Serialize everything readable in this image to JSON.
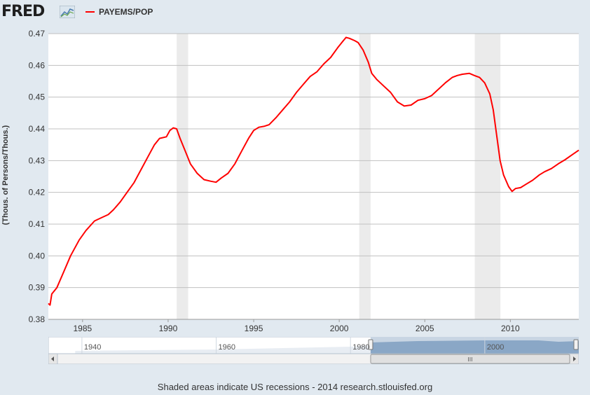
{
  "header": {
    "logo_text": "FRED",
    "logo_icon": "chart-line-icon"
  },
  "chart_data": {
    "type": "line",
    "series": [
      {
        "name": "PAYEMS/POP",
        "color": "#ff0000",
        "points": [
          [
            1983.0,
            0.385
          ],
          [
            1983.1,
            0.3845
          ],
          [
            1983.2,
            0.388
          ],
          [
            1983.5,
            0.39
          ],
          [
            1983.9,
            0.395
          ],
          [
            1984.3,
            0.4
          ],
          [
            1984.8,
            0.405
          ],
          [
            1985.2,
            0.408
          ],
          [
            1985.7,
            0.411
          ],
          [
            1986.1,
            0.412
          ],
          [
            1986.5,
            0.413
          ],
          [
            1986.8,
            0.4145
          ],
          [
            1987.2,
            0.417
          ],
          [
            1987.6,
            0.42
          ],
          [
            1988.0,
            0.423
          ],
          [
            1988.4,
            0.427
          ],
          [
            1988.8,
            0.431
          ],
          [
            1989.2,
            0.435
          ],
          [
            1989.5,
            0.437
          ],
          [
            1989.9,
            0.4375
          ],
          [
            1990.1,
            0.4395
          ],
          [
            1990.3,
            0.4403
          ],
          [
            1990.5,
            0.44
          ],
          [
            1990.7,
            0.437
          ],
          [
            1991.0,
            0.433
          ],
          [
            1991.3,
            0.429
          ],
          [
            1991.7,
            0.426
          ],
          [
            1992.1,
            0.424
          ],
          [
            1992.5,
            0.4235
          ],
          [
            1992.8,
            0.4232
          ],
          [
            1993.1,
            0.4245
          ],
          [
            1993.5,
            0.426
          ],
          [
            1993.9,
            0.429
          ],
          [
            1994.3,
            0.433
          ],
          [
            1994.7,
            0.437
          ],
          [
            1995.0,
            0.4395
          ],
          [
            1995.3,
            0.4405
          ],
          [
            1995.6,
            0.4408
          ],
          [
            1995.9,
            0.4413
          ],
          [
            1996.3,
            0.4435
          ],
          [
            1996.7,
            0.446
          ],
          [
            1997.1,
            0.4485
          ],
          [
            1997.5,
            0.4515
          ],
          [
            1997.9,
            0.454
          ],
          [
            1998.3,
            0.4565
          ],
          [
            1998.7,
            0.458
          ],
          [
            1999.1,
            0.4605
          ],
          [
            1999.5,
            0.4625
          ],
          [
            1999.9,
            0.4655
          ],
          [
            2000.2,
            0.4675
          ],
          [
            2000.4,
            0.4688
          ],
          [
            2000.6,
            0.4685
          ],
          [
            2000.9,
            0.4678
          ],
          [
            2001.1,
            0.4672
          ],
          [
            2001.4,
            0.4648
          ],
          [
            2001.7,
            0.461
          ],
          [
            2001.9,
            0.4575
          ],
          [
            2002.2,
            0.4555
          ],
          [
            2002.6,
            0.4535
          ],
          [
            2003.0,
            0.4515
          ],
          [
            2003.4,
            0.4485
          ],
          [
            2003.8,
            0.4472
          ],
          [
            2004.2,
            0.4475
          ],
          [
            2004.6,
            0.449
          ],
          [
            2005.0,
            0.4495
          ],
          [
            2005.4,
            0.4505
          ],
          [
            2005.8,
            0.4525
          ],
          [
            2006.2,
            0.4545
          ],
          [
            2006.6,
            0.4562
          ],
          [
            2006.9,
            0.4568
          ],
          [
            2007.2,
            0.4572
          ],
          [
            2007.6,
            0.4575
          ],
          [
            2007.9,
            0.4568
          ],
          [
            2008.2,
            0.4562
          ],
          [
            2008.5,
            0.4545
          ],
          [
            2008.8,
            0.451
          ],
          [
            2009.0,
            0.446
          ],
          [
            2009.2,
            0.438
          ],
          [
            2009.4,
            0.43
          ],
          [
            2009.6,
            0.4255
          ],
          [
            2009.9,
            0.4218
          ],
          [
            2010.1,
            0.4203
          ],
          [
            2010.3,
            0.4212
          ],
          [
            2010.6,
            0.4215
          ],
          [
            2010.9,
            0.4225
          ],
          [
            2011.3,
            0.4238
          ],
          [
            2011.7,
            0.4255
          ],
          [
            2012.0,
            0.4265
          ],
          [
            2012.4,
            0.4275
          ],
          [
            2012.8,
            0.429
          ],
          [
            2013.2,
            0.4303
          ],
          [
            2013.6,
            0.4318
          ],
          [
            2014.0,
            0.4333
          ]
        ]
      }
    ],
    "recessions": [
      [
        1990.5,
        1991.17
      ],
      [
        2001.17,
        2001.83
      ],
      [
        2007.92,
        2009.42
      ]
    ],
    "xlim": [
      1983.0,
      2014.0
    ],
    "ylim": [
      0.38,
      0.47
    ],
    "xticks": [
      "1985",
      "1990",
      "1995",
      "2000",
      "2005",
      "2010"
    ],
    "xtick_values": [
      1985,
      1990,
      1995,
      2000,
      2005,
      2010
    ],
    "yticks": [
      "0.38",
      "0.39",
      "0.40",
      "0.41",
      "0.42",
      "0.43",
      "0.44",
      "0.45",
      "0.46",
      "0.47"
    ],
    "ytick_values": [
      0.38,
      0.39,
      0.4,
      0.41,
      0.42,
      0.43,
      0.44,
      0.45,
      0.46,
      0.47
    ],
    "ylabel": "(Thous. of Persons/Thous.)",
    "grid": true
  },
  "navigator": {
    "labels": [
      "1940",
      "1960",
      "1980",
      "2000"
    ],
    "label_years": [
      1940,
      1960,
      1980,
      2000
    ],
    "range": [
      1935,
      2014
    ],
    "selected": [
      1983,
      2014
    ],
    "scroll_grip": "III"
  },
  "footer": {
    "text": "Shaded areas indicate US recessions - 2014 research.stlouisfed.org"
  }
}
